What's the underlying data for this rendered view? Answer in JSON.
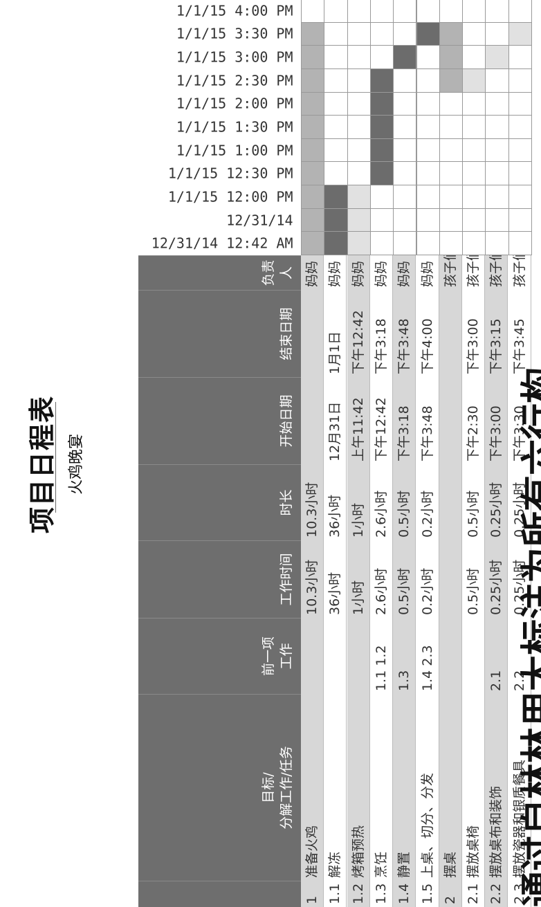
{
  "title": "项目日程表",
  "subtitle": "火鸡晚宴",
  "timeline_labels": [
    "12/31/14 12:42 AM",
    "12/31/14",
    "1/1/15 12:00 PM",
    "1/1/15 12:30 PM",
    "1/1/15 1:00 PM",
    "1/1/15 1:30 PM",
    "1/1/15 2:00 PM",
    "1/1/15 2:30 PM",
    "1/1/15 3:00 PM",
    "1/1/15 3:30 PM",
    "1/1/15 4:00 PM"
  ],
  "table": {
    "headers": {
      "id": "",
      "task": "目标/\n分解工作/任务",
      "predecessor": "前一项\n工作",
      "work": "工作时间",
      "duration": "时长",
      "start": "开始日期",
      "end": "结束日期",
      "owner": "负责人"
    },
    "rows": [
      {
        "id": "1",
        "task": "准备火鸡",
        "predecessor": "",
        "work": "10.3小时",
        "duration": "10.3小时",
        "start": "",
        "end": "",
        "owner": "妈妈",
        "shade": true,
        "gantt": [
          "m",
          "m",
          "m",
          "m",
          "m",
          "m",
          "m",
          "m",
          "m",
          "m",
          ""
        ]
      },
      {
        "id": "1.1",
        "task": "解冻",
        "predecessor": "",
        "work": "36小时",
        "duration": "36小时",
        "start": "12月31日",
        "end": "1月1日",
        "owner": "妈妈",
        "shade": false,
        "gantt": [
          "d",
          "d",
          "d",
          "",
          "",
          "",
          "",
          "",
          "",
          "",
          ""
        ]
      },
      {
        "id": "1.2",
        "task": "烤箱预热",
        "predecessor": "",
        "work": "1小时",
        "duration": "1小时",
        "start": "上午11:42",
        "end": "下午12:42",
        "owner": "妈妈",
        "shade": true,
        "gantt": [
          "l",
          "l",
          "l",
          "",
          "",
          "",
          "",
          "",
          "",
          "",
          ""
        ]
      },
      {
        "id": "1.3",
        "task": "烹饪",
        "predecessor": "1.1 1.2",
        "work": "2.6小时",
        "duration": "2.6小时",
        "start": "下午12:42",
        "end": "下午3:18",
        "owner": "妈妈",
        "shade": false,
        "gantt": [
          "",
          "",
          "",
          "d",
          "d",
          "d",
          "d",
          "d",
          "",
          "",
          ""
        ]
      },
      {
        "id": "1.4",
        "task": "静置",
        "predecessor": "1.3",
        "work": "0.5小时",
        "duration": "0.5小时",
        "start": "下午3:18",
        "end": "下午3:48",
        "owner": "妈妈",
        "shade": true,
        "gantt": [
          "",
          "",
          "",
          "",
          "",
          "",
          "",
          "",
          "d",
          "",
          ""
        ]
      },
      {
        "id": "1.5",
        "task": "上桌、切分、分发",
        "predecessor": "1.4 2.3",
        "work": "0.2小时",
        "duration": "0.2小时",
        "start": "下午3:48",
        "end": "下午4:00",
        "owner": "妈妈",
        "shade": false,
        "gantt": [
          "",
          "",
          "",
          "",
          "",
          "",
          "",
          "",
          "",
          "d",
          ""
        ]
      },
      {
        "id": "2",
        "task": "摆桌",
        "predecessor": "",
        "work": "",
        "duration": "",
        "start": "",
        "end": "",
        "owner": "孩子们",
        "shade": true,
        "gantt": [
          "",
          "",
          "",
          "",
          "",
          "",
          "",
          "m",
          "m",
          "m",
          ""
        ]
      },
      {
        "id": "2.1",
        "task": "摆放桌椅",
        "predecessor": "",
        "work": "0.5小时",
        "duration": "0.5小时",
        "start": "下午2:30",
        "end": "下午3:00",
        "owner": "孩子们",
        "shade": false,
        "gantt": [
          "",
          "",
          "",
          "",
          "",
          "",
          "",
          "l",
          "",
          "",
          ""
        ]
      },
      {
        "id": "2.2",
        "task": "摆放桌布和装饰",
        "predecessor": "2.1",
        "work": "0.25小时",
        "duration": "0.25小时",
        "start": "下午3:00",
        "end": "下午3:15",
        "owner": "孩子们",
        "shade": true,
        "gantt": [
          "",
          "",
          "",
          "",
          "",
          "",
          "",
          "",
          "l",
          "",
          ""
        ]
      },
      {
        "id": "2.3",
        "task": "摆放瓷器和银质餐具",
        "predecessor": "2.2",
        "work": "0.25小时",
        "duration": "0.25小时",
        "start": "下午3:30",
        "end": "下午3:45",
        "owner": "孩子们",
        "shade": false,
        "gantt": [
          "",
          "",
          "",
          "",
          "",
          "",
          "",
          "",
          "",
          "l",
          ""
        ]
      }
    ]
  },
  "bottom_text": "通过自林林用大标注为所有六行构",
  "colors": {
    "header_bg": "#6e6e6e",
    "shade": "#d7d7d7",
    "gantt_light": "#e1e1e1",
    "gantt_mid": "#b3b3b3",
    "gantt_dark": "#6c6c6c"
  }
}
